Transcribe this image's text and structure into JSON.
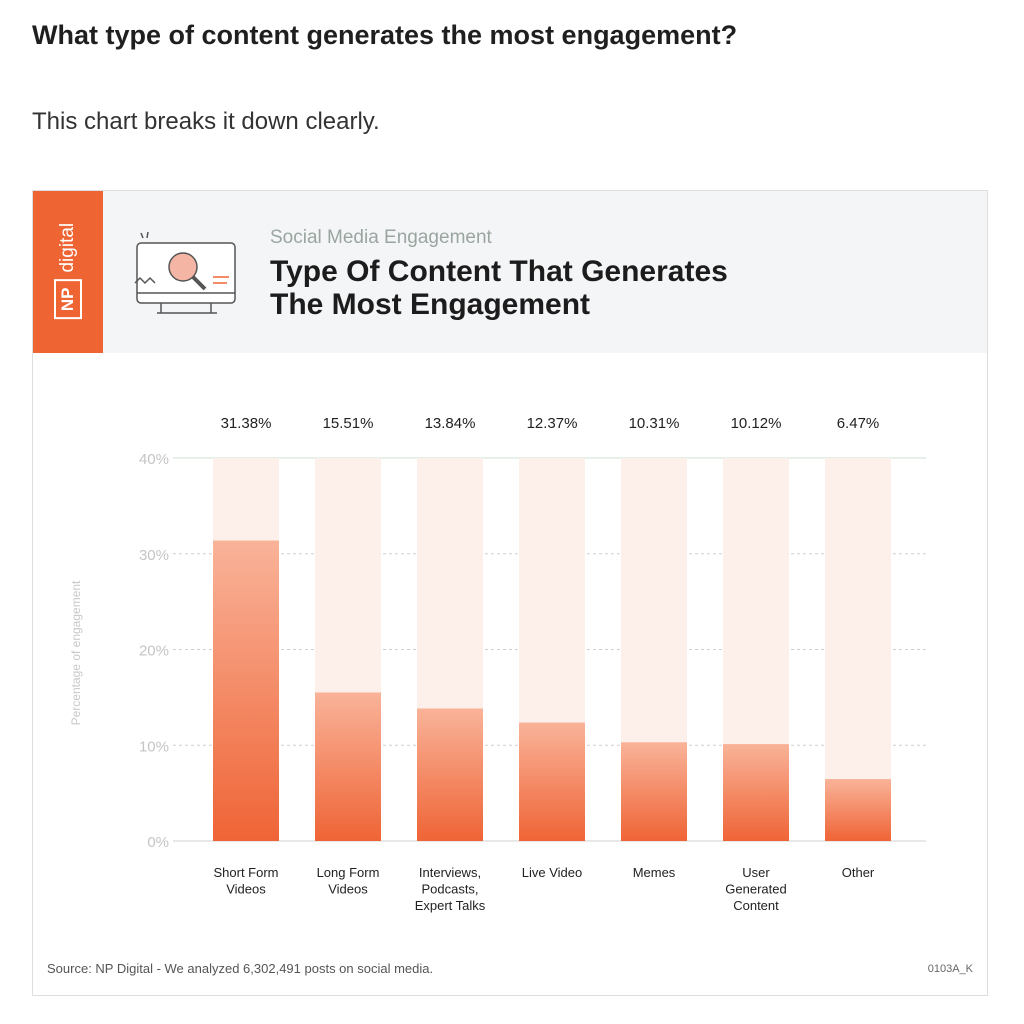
{
  "page": {
    "question": "What type of content generates the most engagement?",
    "intro": "This chart breaks it down clearly."
  },
  "header": {
    "logo_np": "NP",
    "logo_digital": "digital",
    "kicker": "Social Media Engagement",
    "title_line1": "Type Of Content That Generates",
    "title_line2": "The Most Engagement"
  },
  "footer": {
    "source": "Source: NP Digital - We analyzed 6,302,491 posts on social media.",
    "code": "0103A_K"
  },
  "colors": {
    "brand": "#ef6433",
    "bar_top": "#f9b399",
    "bar_bottom": "#ef6436",
    "bar_bg": "#fdefe9"
  },
  "chart_data": {
    "type": "bar",
    "title": "Type Of Content That Generates The Most Engagement",
    "subtitle": "Social Media Engagement",
    "ylabel": "Percentage of engagement",
    "xlabel": "",
    "ylim": [
      0,
      40
    ],
    "yticks": [
      "0%",
      "10%",
      "20%",
      "30%",
      "40%"
    ],
    "grid": true,
    "categories": [
      [
        "Short Form",
        "Videos"
      ],
      [
        "Long Form",
        "Videos"
      ],
      [
        "Interviews,",
        "Podcasts,",
        "Expert Talks"
      ],
      [
        "Live Video"
      ],
      [
        "Memes"
      ],
      [
        "User",
        "Generated",
        "Content"
      ],
      [
        "Other"
      ]
    ],
    "values": [
      31.38,
      15.51,
      13.84,
      12.37,
      10.31,
      10.12,
      6.47
    ],
    "value_labels": [
      "31.38%",
      "15.51%",
      "13.84%",
      "12.37%",
      "10.31%",
      "10.12%",
      "6.47%"
    ]
  }
}
